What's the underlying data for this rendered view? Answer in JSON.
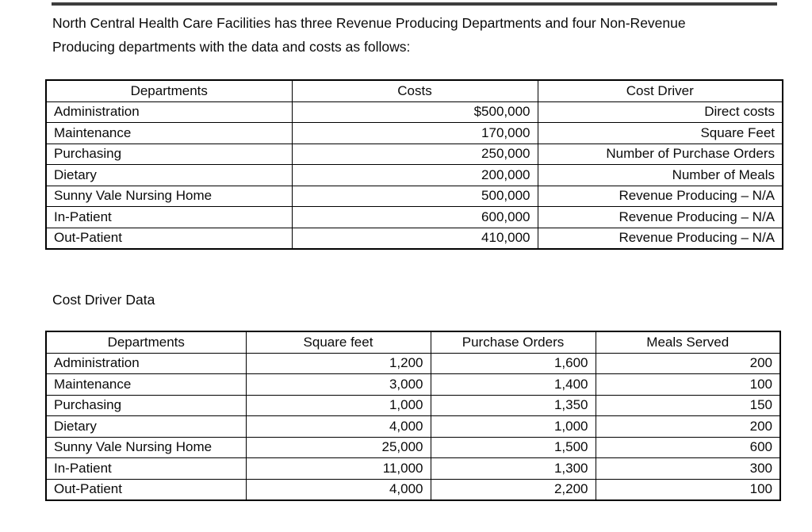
{
  "page": {
    "intro_line1": "North Central Health Care Facilities has three Revenue Producing Departments and four Non-Revenue",
    "intro_line2": "Producing departments with the data and costs as follows:",
    "section_heading": "Cost Driver Data"
  },
  "cost_table": {
    "headers": [
      "Departments",
      "Costs",
      "Cost Driver"
    ],
    "rows": [
      [
        "Administration",
        "$500,000",
        "Direct costs"
      ],
      [
        "Maintenance",
        "170,000",
        "Square Feet"
      ],
      [
        "Purchasing",
        "250,000",
        "Number of Purchase Orders"
      ],
      [
        "Dietary",
        "200,000",
        "Number of Meals"
      ],
      [
        "Sunny Vale Nursing Home",
        "500,000",
        "Revenue Producing – N/A"
      ],
      [
        "In-Patient",
        "600,000",
        "Revenue Producing – N/A"
      ],
      [
        "Out-Patient",
        "410,000",
        "Revenue Producing – N/A"
      ]
    ]
  },
  "driver_table": {
    "headers": [
      "Departments",
      "Square feet",
      "Purchase Orders",
      "Meals Served"
    ],
    "rows": [
      [
        "Administration",
        "1,200",
        "1,600",
        "200"
      ],
      [
        "Maintenance",
        "3,000",
        "1,400",
        "100"
      ],
      [
        "Purchasing",
        "1,000",
        "1,350",
        "150"
      ],
      [
        "Dietary",
        "4,000",
        "1,000",
        "200"
      ],
      [
        "Sunny Vale Nursing Home",
        "25,000",
        "1,500",
        "600"
      ],
      [
        "In-Patient",
        "11,000",
        "1,300",
        "300"
      ],
      [
        "Out-Patient",
        "4,000",
        "2,200",
        "100"
      ]
    ]
  },
  "colors": {
    "background": "#ffffff",
    "text": "#0b0b0b",
    "table_border": "#000000",
    "top_rule": "#3d3d3d"
  }
}
